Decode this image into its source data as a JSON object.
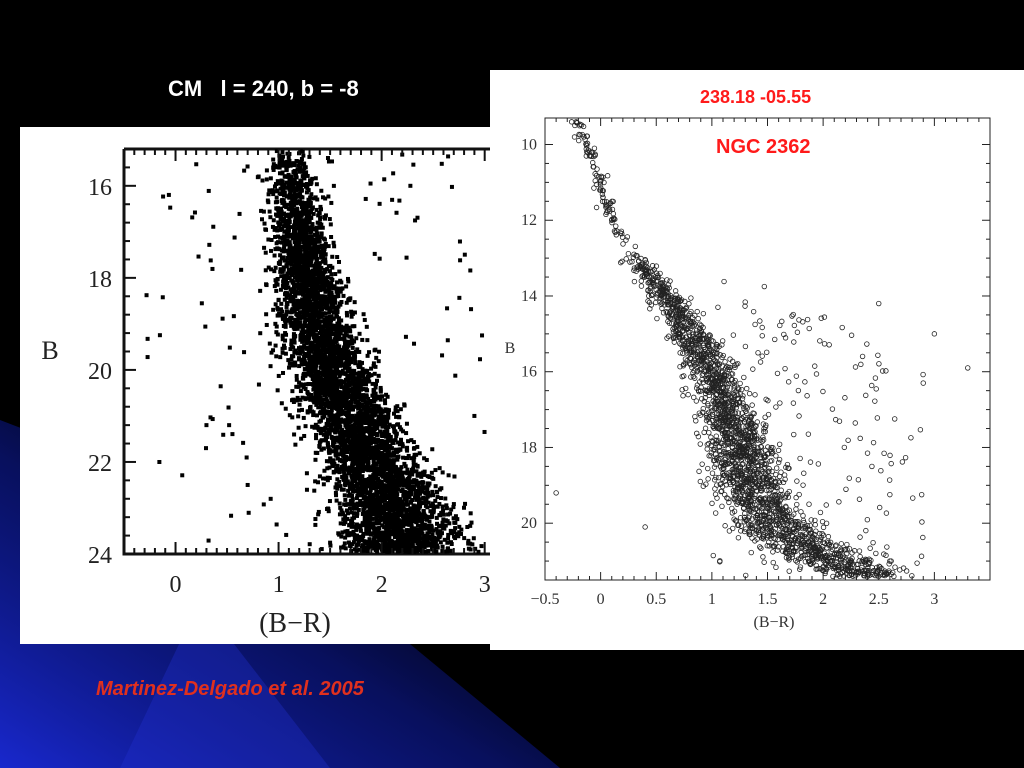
{
  "slide": {
    "title": "CM   l = 240, b = -8",
    "citation": "Martinez-Delgado et al. 2005",
    "colors": {
      "background": "#000000",
      "accent_streak": "#1a2ad8",
      "red_text": "#ff1a1a",
      "citation_text": "#e0301e"
    }
  },
  "chart_data": [
    {
      "type": "scatter",
      "title": "",
      "xlabel": "(B−R)",
      "ylabel": "B",
      "xlim": [
        -0.5,
        3.1
      ],
      "ylim": [
        15.2,
        24
      ],
      "y_inverted": true,
      "x_ticks": [
        "0",
        "1",
        "2",
        "3"
      ],
      "y_ticks": [
        "16",
        "18",
        "20",
        "22",
        "24"
      ],
      "marker": "filled square",
      "density_ridge": [
        [
          1.1,
          15.5
        ],
        [
          1.2,
          17.0
        ],
        [
          1.35,
          19.0
        ],
        [
          1.6,
          20.5
        ],
        [
          1.9,
          22.0
        ],
        [
          2.2,
          23.5
        ]
      ],
      "sample_points": [
        [
          1.0,
          15.6
        ],
        [
          1.15,
          16.4
        ],
        [
          1.3,
          17.5
        ],
        [
          1.05,
          18.2
        ],
        [
          1.5,
          19.4
        ],
        [
          1.8,
          20.6
        ],
        [
          2.1,
          21.7
        ],
        [
          2.4,
          22.8
        ],
        [
          2.6,
          23.4
        ],
        [
          0.3,
          21.2
        ],
        [
          2.9,
          21.0
        ],
        [
          0.7,
          22.5
        ]
      ]
    },
    {
      "type": "scatter",
      "title": "NGC 2362",
      "subtitle": "238.18 -05.55",
      "xlabel": "(B−R)",
      "ylabel": "B",
      "xlim": [
        -0.5,
        3.5
      ],
      "ylim": [
        9.3,
        21.5
      ],
      "y_inverted": true,
      "x_ticks": [
        "−0.5",
        "0",
        "0.5",
        "1",
        "1.5",
        "2",
        "2.5",
        "3"
      ],
      "y_ticks": [
        "10",
        "12",
        "14",
        "16",
        "18",
        "20"
      ],
      "marker": "open circle",
      "sequence_ridge": [
        [
          -0.2,
          9.5
        ],
        [
          -0.05,
          10.5
        ],
        [
          0.05,
          11.5
        ],
        [
          0.15,
          12.3
        ],
        [
          0.4,
          13.3
        ],
        [
          0.7,
          14.5
        ],
        [
          1.0,
          16.0
        ],
        [
          1.2,
          17.5
        ],
        [
          1.35,
          19.0
        ],
        [
          1.6,
          20.2
        ],
        [
          2.0,
          20.9
        ],
        [
          2.4,
          21.3
        ]
      ],
      "sample_points": [
        [
          -0.22,
          9.4
        ],
        [
          -0.15,
          9.8
        ],
        [
          -0.1,
          10.3
        ],
        [
          0.0,
          11.2
        ],
        [
          0.1,
          12.0
        ],
        [
          0.3,
          12.9
        ],
        [
          0.6,
          13.8
        ],
        [
          0.9,
          15.2
        ],
        [
          1.1,
          16.8
        ],
        [
          1.3,
          18.2
        ],
        [
          1.5,
          19.5
        ],
        [
          1.8,
          20.3
        ],
        [
          2.2,
          20.7
        ],
        [
          2.6,
          21.0
        ],
        [
          3.0,
          15.0
        ],
        [
          3.3,
          15.9
        ],
        [
          2.9,
          16.3
        ],
        [
          -0.4,
          19.2
        ],
        [
          0.4,
          20.1
        ],
        [
          2.5,
          14.2
        ]
      ]
    }
  ]
}
